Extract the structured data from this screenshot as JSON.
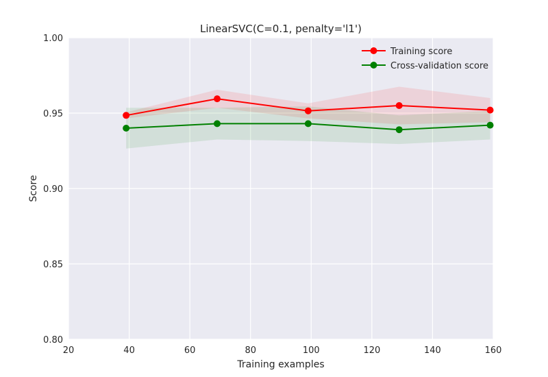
{
  "chart_data": {
    "type": "line",
    "title": "LinearSVC(C=0.1, penalty='l1')",
    "xlabel": "Training examples",
    "ylabel": "Score",
    "xlim": [
      20,
      160
    ],
    "ylim": [
      0.8,
      1.0
    ],
    "xticks": [
      20,
      40,
      60,
      80,
      100,
      120,
      140,
      160
    ],
    "yticks": [
      0.8,
      0.85,
      0.9,
      0.95,
      1.0
    ],
    "xtick_labels": [
      "20",
      "40",
      "60",
      "80",
      "100",
      "120",
      "140",
      "160"
    ],
    "ytick_labels": [
      "0.80",
      "0.85",
      "0.90",
      "0.95",
      "1.00"
    ],
    "grid": true,
    "legend_position": "top-right",
    "x": [
      39,
      69,
      99,
      129,
      159
    ],
    "series": [
      {
        "name": "Training score",
        "color": "#ff0000",
        "band_color": "#ff0000",
        "values": [
          0.9485,
          0.9595,
          0.9515,
          0.955,
          0.952
        ],
        "band_low": [
          0.9465,
          0.9535,
          0.9465,
          0.9425,
          0.944
        ],
        "band_high": [
          0.9505,
          0.9655,
          0.9565,
          0.9675,
          0.96
        ]
      },
      {
        "name": "Cross-validation score",
        "color": "#008000",
        "band_color": "#008000",
        "values": [
          0.94,
          0.943,
          0.943,
          0.939,
          0.942
        ],
        "band_low": [
          0.9265,
          0.9325,
          0.9315,
          0.9295,
          0.9325
        ],
        "band_high": [
          0.9535,
          0.9535,
          0.9545,
          0.9485,
          0.9515
        ]
      }
    ]
  }
}
